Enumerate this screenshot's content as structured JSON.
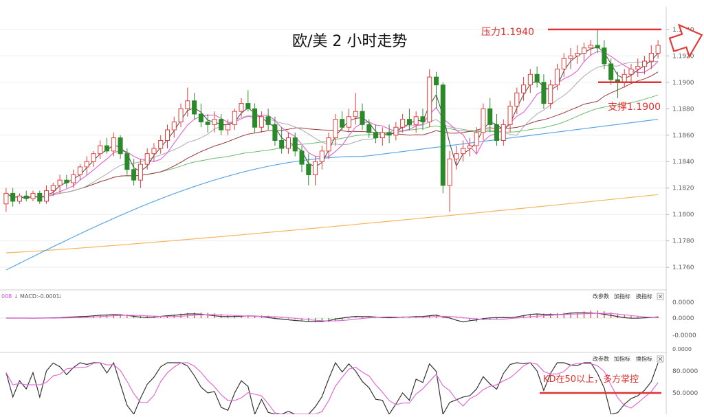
{
  "chart_data": {
    "type": "candlestick",
    "title": "欧/美 2 小时走势",
    "instrument": "欧/美",
    "timeframe": "2 小时",
    "main_panel": {
      "y_ticks": [
        "1.1940",
        "1.1920",
        "1.1900",
        "1.1880",
        "1.1860",
        "1.1840",
        "1.1820",
        "1.1800",
        "1.1780",
        "1.1760"
      ],
      "ylim": [
        1.1745,
        1.1955
      ],
      "candles": [
        [
          1.1808,
          1.182,
          1.1802,
          1.1816
        ],
        [
          1.1816,
          1.182,
          1.1806,
          1.181
        ],
        [
          1.181,
          1.1816,
          1.1808,
          1.1814
        ],
        [
          1.1814,
          1.1818,
          1.181,
          1.1812
        ],
        [
          1.1812,
          1.1818,
          1.181,
          1.1816
        ],
        [
          1.1816,
          1.1818,
          1.1808,
          1.181
        ],
        [
          1.181,
          1.1822,
          1.1808,
          1.1818
        ],
        [
          1.1818,
          1.1824,
          1.1814,
          1.1822
        ],
        [
          1.1822,
          1.183,
          1.1816,
          1.1826
        ],
        [
          1.1826,
          1.183,
          1.182,
          1.1824
        ],
        [
          1.1824,
          1.1834,
          1.182,
          1.183
        ],
        [
          1.183,
          1.1838,
          1.1826,
          1.1836
        ],
        [
          1.1836,
          1.1844,
          1.183,
          1.184
        ],
        [
          1.184,
          1.1848,
          1.1836,
          1.1846
        ],
        [
          1.1846,
          1.1856,
          1.1842,
          1.1852
        ],
        [
          1.1852,
          1.1858,
          1.1846,
          1.1848
        ],
        [
          1.1848,
          1.1862,
          1.1844,
          1.1858
        ],
        [
          1.1858,
          1.186,
          1.1842,
          1.1846
        ],
        [
          1.1846,
          1.185,
          1.183,
          1.1834
        ],
        [
          1.1834,
          1.1842,
          1.1822,
          1.1826
        ],
        [
          1.1826,
          1.1842,
          1.182,
          1.1838
        ],
        [
          1.1838,
          1.185,
          1.1834,
          1.1846
        ],
        [
          1.1846,
          1.1854,
          1.184,
          1.185
        ],
        [
          1.185,
          1.186,
          1.1846,
          1.1856
        ],
        [
          1.1856,
          1.1868,
          1.185,
          1.1864
        ],
        [
          1.1864,
          1.1874,
          1.1858,
          1.187
        ],
        [
          1.187,
          1.1884,
          1.1866,
          1.188
        ],
        [
          1.188,
          1.1896,
          1.1874,
          1.1886
        ],
        [
          1.1886,
          1.1892,
          1.1872,
          1.1876
        ],
        [
          1.1876,
          1.1884,
          1.1866,
          1.187
        ],
        [
          1.187,
          1.1876,
          1.1862,
          1.1868
        ],
        [
          1.1868,
          1.1878,
          1.1862,
          1.1872
        ],
        [
          1.1872,
          1.1876,
          1.186,
          1.1864
        ],
        [
          1.1864,
          1.1872,
          1.186,
          1.1868
        ],
        [
          1.1868,
          1.188,
          1.1864,
          1.1878
        ],
        [
          1.1878,
          1.1888,
          1.1874,
          1.1884
        ],
        [
          1.1884,
          1.1894,
          1.1878,
          1.188
        ],
        [
          1.188,
          1.1884,
          1.1862,
          1.1866
        ],
        [
          1.1866,
          1.1878,
          1.1862,
          1.1874
        ],
        [
          1.1874,
          1.188,
          1.1864,
          1.1868
        ],
        [
          1.1868,
          1.1874,
          1.1852,
          1.1856
        ],
        [
          1.1856,
          1.1866,
          1.1846,
          1.185
        ],
        [
          1.185,
          1.1862,
          1.1846,
          1.1858
        ],
        [
          1.1858,
          1.1862,
          1.1844,
          1.1848
        ],
        [
          1.1848,
          1.1852,
          1.1832,
          1.1838
        ],
        [
          1.1838,
          1.1846,
          1.1822,
          1.183
        ],
        [
          1.183,
          1.1844,
          1.1822,
          1.184
        ],
        [
          1.184,
          1.1852,
          1.1834,
          1.1848
        ],
        [
          1.1848,
          1.1862,
          1.1842,
          1.1858
        ],
        [
          1.1858,
          1.1876,
          1.1852,
          1.1872
        ],
        [
          1.1872,
          1.1878,
          1.1864,
          1.1866
        ],
        [
          1.1866,
          1.188,
          1.1862,
          1.1874
        ],
        [
          1.1874,
          1.1892,
          1.1868,
          1.1878
        ],
        [
          1.1878,
          1.1884,
          1.1864,
          1.1868
        ],
        [
          1.1868,
          1.1872,
          1.1858,
          1.1862
        ],
        [
          1.1862,
          1.1868,
          1.1854,
          1.1858
        ],
        [
          1.1858,
          1.1866,
          1.1852,
          1.1862
        ],
        [
          1.1862,
          1.1868,
          1.1854,
          1.186
        ],
        [
          1.186,
          1.187,
          1.1856,
          1.1866
        ],
        [
          1.1866,
          1.1876,
          1.1862,
          1.1872
        ],
        [
          1.1872,
          1.188,
          1.1864,
          1.1868
        ],
        [
          1.1868,
          1.1878,
          1.1862,
          1.1874
        ],
        [
          1.1874,
          1.188,
          1.1864,
          1.187
        ],
        [
          1.187,
          1.191,
          1.1866,
          1.1904
        ],
        [
          1.1904,
          1.1908,
          1.188,
          1.1898
        ],
        [
          1.1898,
          1.19,
          1.1816,
          1.1822
        ],
        [
          1.1822,
          1.1848,
          1.1802,
          1.1842
        ],
        [
          1.1842,
          1.1852,
          1.1834,
          1.1846
        ],
        [
          1.1846,
          1.1856,
          1.184,
          1.185
        ],
        [
          1.185,
          1.1858,
          1.1844,
          1.1852
        ],
        [
          1.1852,
          1.1866,
          1.1846,
          1.1862
        ],
        [
          1.1862,
          1.1884,
          1.1856,
          1.188
        ],
        [
          1.188,
          1.1888,
          1.1862,
          1.1868
        ],
        [
          1.1868,
          1.1876,
          1.1852,
          1.1856
        ],
        [
          1.1856,
          1.1872,
          1.1852,
          1.1868
        ],
        [
          1.1868,
          1.1886,
          1.1862,
          1.1882
        ],
        [
          1.1882,
          1.1896,
          1.1876,
          1.1892
        ],
        [
          1.1892,
          1.1904,
          1.1886,
          1.1898
        ],
        [
          1.1898,
          1.191,
          1.1892,
          1.1906
        ],
        [
          1.1906,
          1.1912,
          1.1896,
          1.19
        ],
        [
          1.19,
          1.1906,
          1.188,
          1.1884
        ],
        [
          1.1884,
          1.1902,
          1.188,
          1.1898
        ],
        [
          1.1898,
          1.1914,
          1.1894,
          1.191
        ],
        [
          1.191,
          1.1922,
          1.1904,
          1.1918
        ],
        [
          1.1918,
          1.1926,
          1.191,
          1.192
        ],
        [
          1.192,
          1.1928,
          1.1914,
          1.1922
        ],
        [
          1.1922,
          1.193,
          1.1916,
          1.1926
        ],
        [
          1.1926,
          1.1932,
          1.192,
          1.1928
        ],
        [
          1.1928,
          1.194,
          1.1922,
          1.1926
        ],
        [
          1.1926,
          1.1932,
          1.191,
          1.1914
        ],
        [
          1.1914,
          1.1918,
          1.1898,
          1.1902
        ],
        [
          1.1902,
          1.1908,
          1.1888,
          1.19
        ],
        [
          1.19,
          1.191,
          1.1896,
          1.1906
        ],
        [
          1.1906,
          1.1914,
          1.19,
          1.191
        ],
        [
          1.191,
          1.1918,
          1.1904,
          1.1912
        ],
        [
          1.1912,
          1.192,
          1.1906,
          1.1916
        ],
        [
          1.1916,
          1.1928,
          1.191,
          1.1922
        ],
        [
          1.1922,
          1.1932,
          1.1918,
          1.1928
        ]
      ],
      "annotations": [
        {
          "text": "压力1.1940",
          "level": 1.194,
          "color": "#e03030"
        },
        {
          "text": "支撑1.1900",
          "level": 1.19,
          "color": "#e03030"
        }
      ]
    },
    "macd_panel": {
      "label": "MACD:-0.0001",
      "label_prefix": "008",
      "buttons": [
        "改参数",
        "加指标",
        "换指标"
      ],
      "y_ticks": [
        "0.0000",
        "0.0000",
        "-0.0000"
      ]
    },
    "kd_panel": {
      "buttons": [
        "改参数",
        "加指标",
        "换指标"
      ],
      "y_ticks": [
        "80.0000",
        "50.0000"
      ],
      "top_tick": "0.0000",
      "annotation": "KD在50以上，多方掌控",
      "level": 50
    },
    "colors": {
      "bull": "#e33a3a",
      "bear": "#2a8a2a",
      "ma_fast": "#555555",
      "ma_pink": "#e36ad7",
      "ma_gray": "#aaaaaa",
      "ma_brown": "#9b3a3a",
      "ma_green": "#6cbb6c",
      "ma_blue": "#58a6e8",
      "ma_orange": "#f6b45c",
      "annotation": "#e03030",
      "arrow": "#e53935"
    }
  }
}
